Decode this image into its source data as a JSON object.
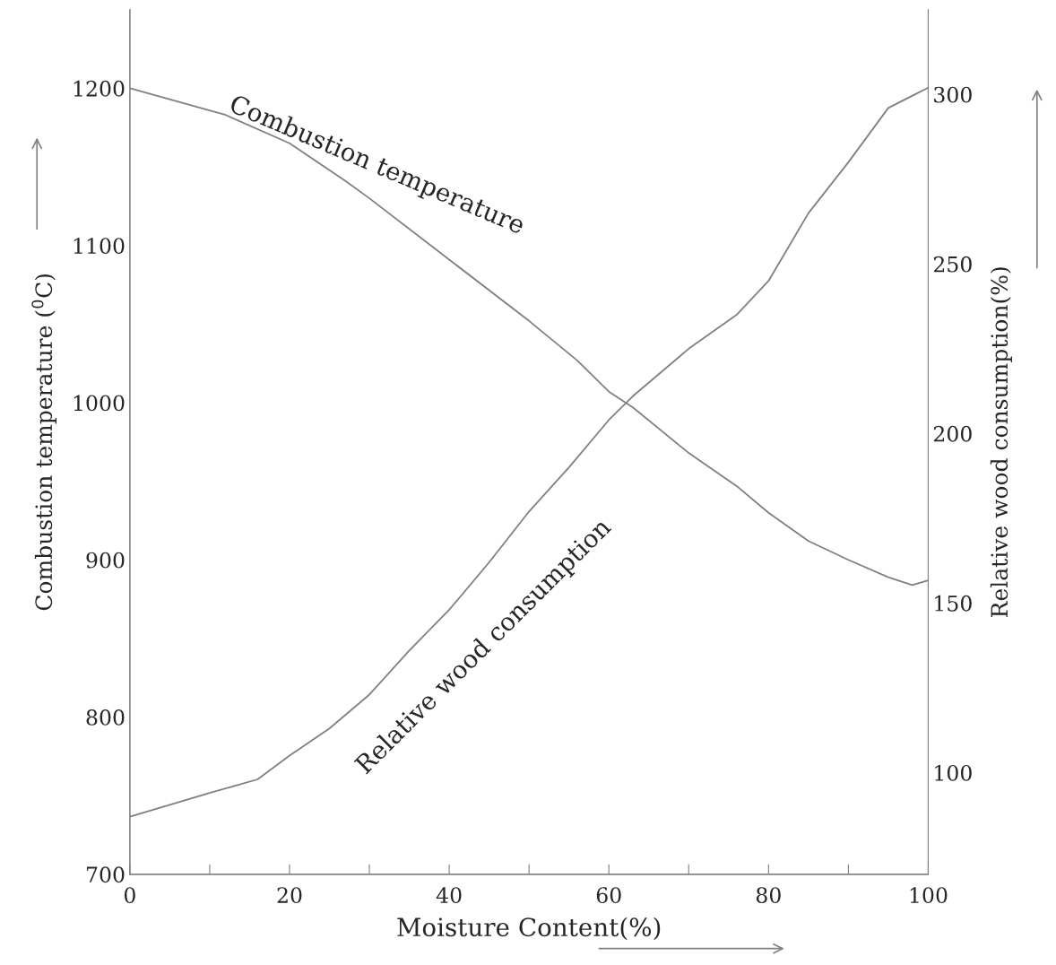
{
  "chart_data": {
    "type": "line",
    "xlabel": "Moisture Content(%)",
    "ylabel": "Combustion temperature ($^{0}$C)",
    "y2label": "Relative wood consumption(%)",
    "xlim": [
      0,
      100
    ],
    "xticks": [
      0,
      {
        "value": 10,
        "label": null
      },
      20,
      {
        "value": 30,
        "label": null
      },
      40,
      {
        "value": 50,
        "label": null
      },
      60,
      {
        "value": 70,
        "label": null
      },
      80,
      {
        "value": 90,
        "label": null
      },
      100
    ],
    "ylim": [
      700,
      1250
    ],
    "yticks": [
      700,
      800,
      900,
      1000,
      1100,
      1200
    ],
    "y2lim": [
      70,
      325
    ],
    "y2ticks": [
      100,
      150,
      200,
      250,
      300
    ],
    "grid": false,
    "legend": false,
    "marker": "none",
    "line_style": "solid",
    "series": [
      {
        "name": "Combustion temperature",
        "color": "#808080",
        "x": [
          0,
          12,
          20,
          27,
          30,
          40,
          50,
          56,
          60,
          63,
          70,
          76,
          80,
          85,
          90,
          95,
          98,
          100
        ],
        "values": [
          1200,
          1183,
          1165,
          1141,
          1130,
          1091,
          1052,
          1027,
          1007,
          997,
          968,
          947,
          930,
          912,
          900,
          889,
          884,
          887
        ]
      },
      {
        "name": "Relative wood consumption",
        "color": "#808080",
        "axis": "y2",
        "x": [
          0,
          10,
          16,
          20,
          25,
          30,
          35,
          40,
          45,
          50,
          55,
          60,
          63,
          70,
          76,
          80,
          85,
          90,
          95,
          100
        ],
        "values": [
          87,
          94,
          98,
          105,
          113,
          123,
          136,
          148,
          162,
          177,
          190,
          204,
          211,
          225,
          235,
          245,
          265,
          280,
          296,
          302
        ]
      }
    ]
  }
}
